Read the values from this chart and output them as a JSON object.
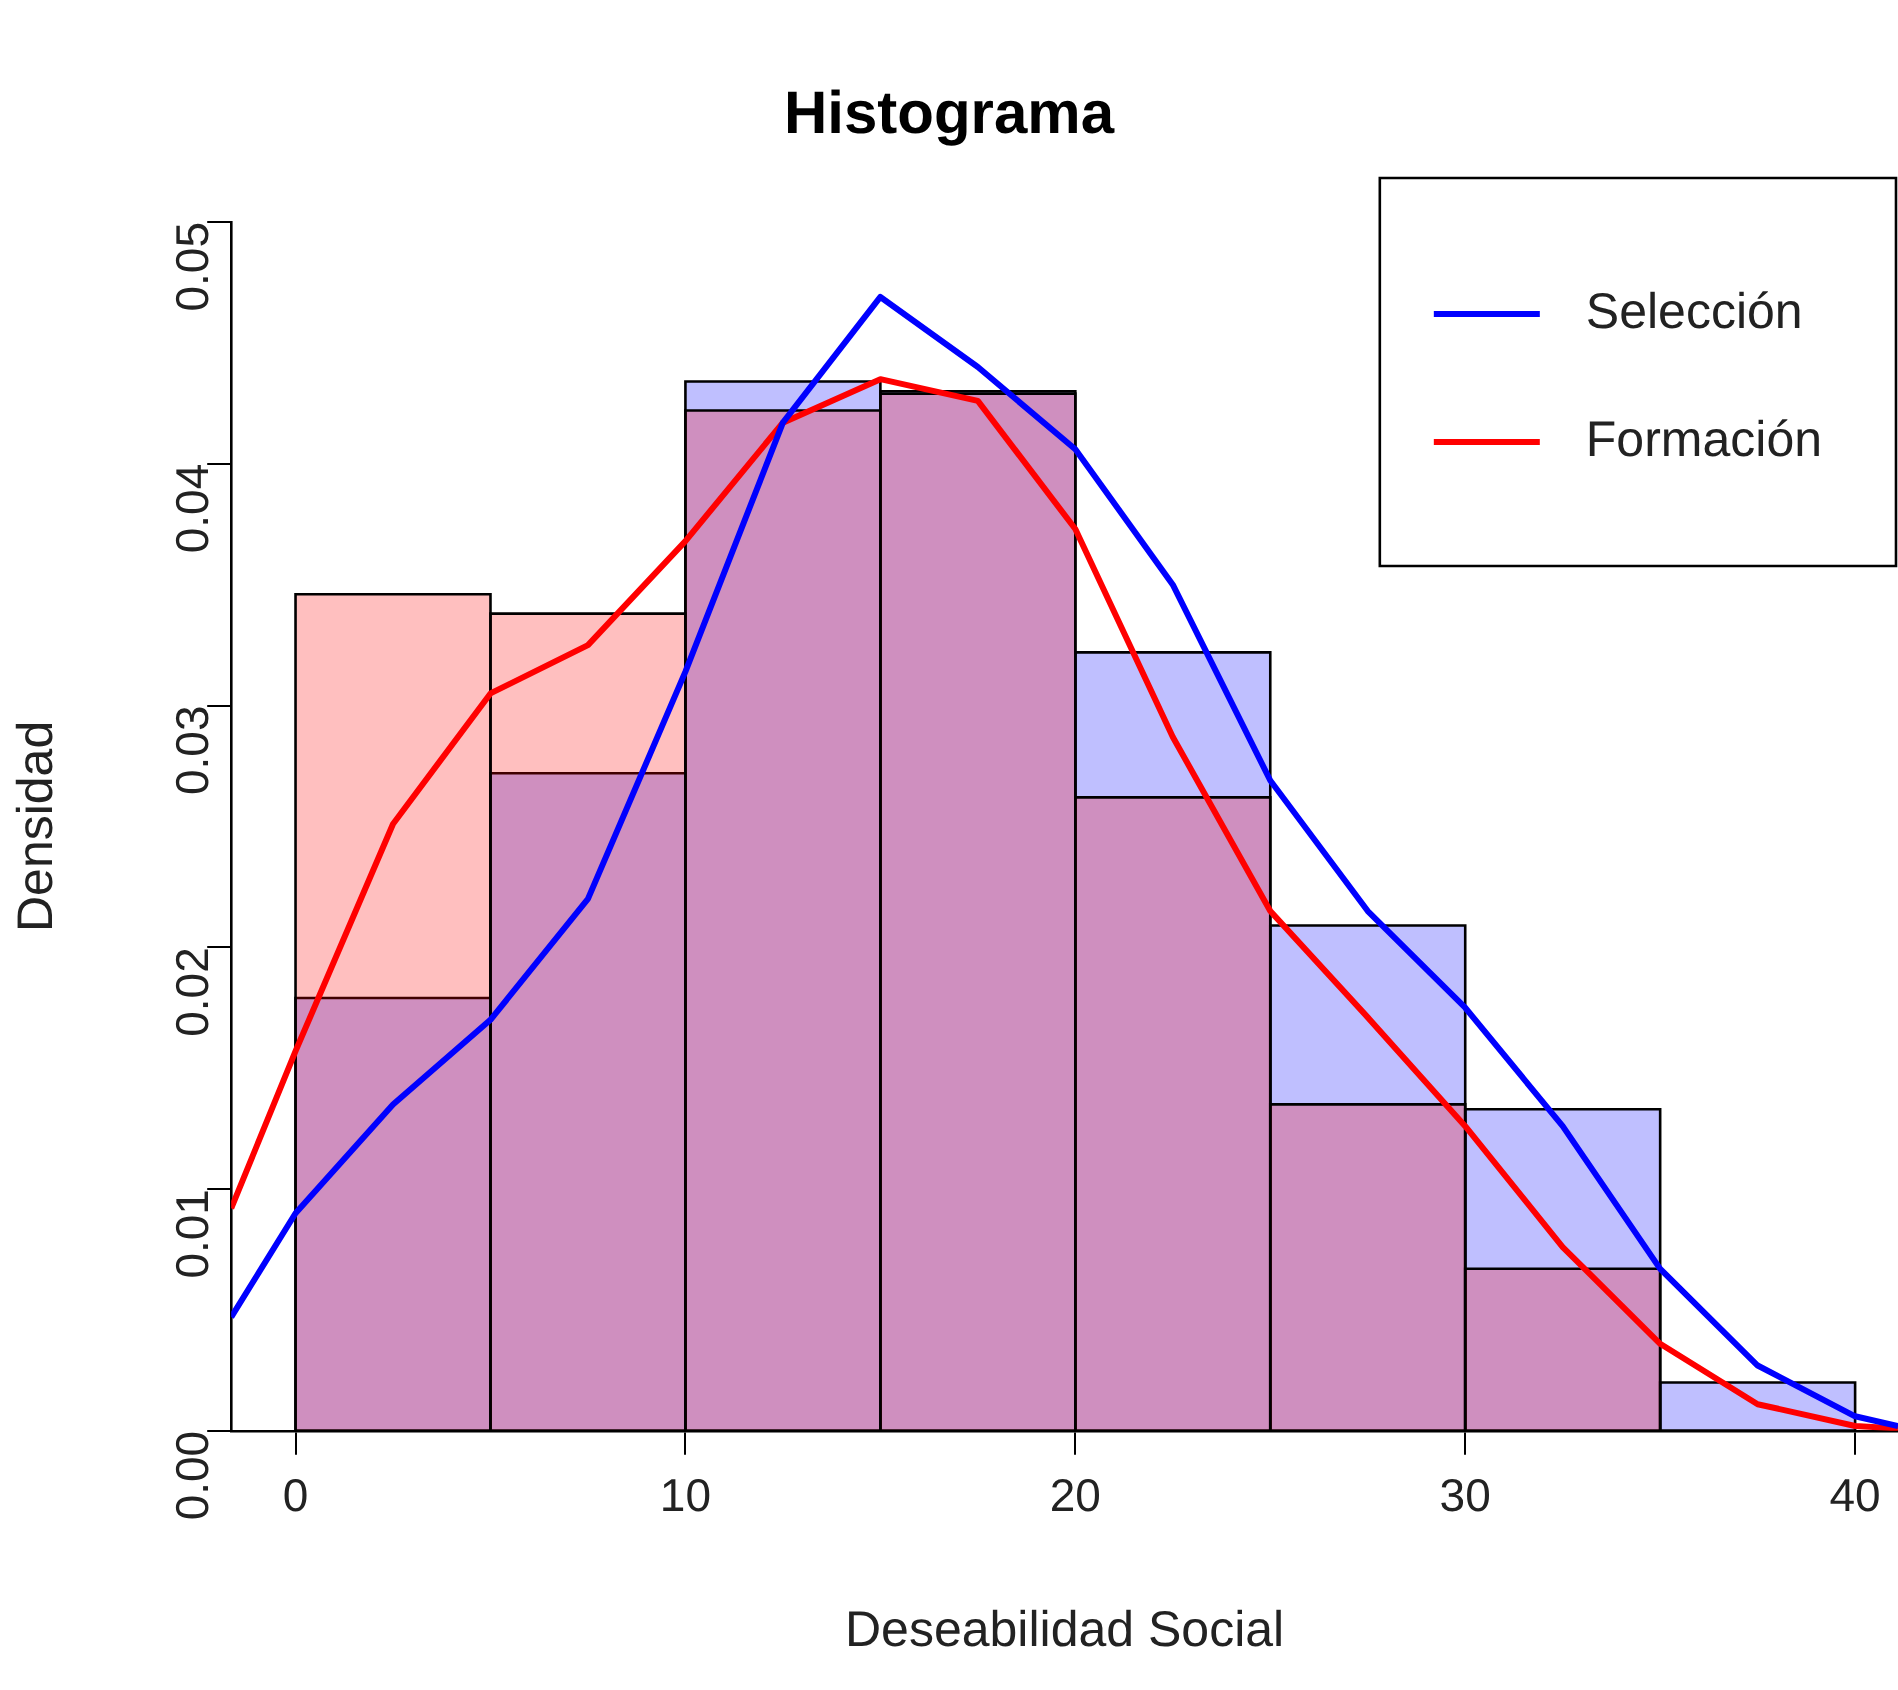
{
  "chart_data": {
    "type": "histogram",
    "title": "Histograma",
    "xlabel": "Deseabilidad Social",
    "ylabel": "Densidad",
    "bins": [
      0,
      5,
      10,
      15,
      20,
      25,
      30,
      35,
      40
    ],
    "xlim": [
      -1.65,
      41.1
    ],
    "xticks": [
      0,
      10,
      20,
      30,
      40
    ],
    "ylim": [
      0,
      0.05
    ],
    "yticks": [
      {
        "value": 0,
        "label": "0.00"
      },
      0.01,
      0.02,
      0.03,
      0.04,
      0.05
    ],
    "grid": false,
    "legend": "top right",
    "series": [
      {
        "type": "histogram",
        "color": "#0000ff",
        "values": [
          0.0179,
          0.0272,
          0.0434,
          0.043,
          0.0322,
          0.0209,
          0.0133,
          0.002
        ]
      },
      {
        "type": "histogram",
        "color": "#ff0000",
        "values": [
          0.0346,
          0.0338,
          0.0422,
          0.0429,
          0.0262,
          0.0135,
          0.0067,
          0
        ]
      },
      {
        "type": "line",
        "name": "Selección",
        "color": "#0000ff",
        "x": [
          -1.65,
          0,
          2.5,
          5,
          7.5,
          10,
          12.5,
          15,
          17.5,
          20,
          22.5,
          25,
          27.5,
          30,
          32.5,
          35,
          37.5,
          40,
          41.1
        ],
        "values": [
          0.0047,
          0.009,
          0.0135,
          0.017,
          0.022,
          0.0314,
          0.0417,
          0.0469,
          0.044,
          0.0406,
          0.035,
          0.0269,
          0.0215,
          0.0175,
          0.0126,
          0.0067,
          0.0027,
          0.0006,
          0.0002
        ]
      },
      {
        "type": "line",
        "name": "Formación",
        "color": "#ff0000",
        "x": [
          -1.65,
          0,
          2.5,
          5,
          7.5,
          10,
          12.5,
          15,
          17.5,
          20,
          22.5,
          25,
          27.5,
          30,
          32.5,
          35,
          37.5,
          40,
          41.1
        ],
        "values": [
          0.0092,
          0.0157,
          0.0251,
          0.0305,
          0.0325,
          0.0368,
          0.0417,
          0.0435,
          0.0426,
          0.0373,
          0.0287,
          0.0215,
          0.0171,
          0.0126,
          0.0076,
          0.0036,
          0.0011,
          0.0002,
          0.0001
        ]
      }
    ]
  }
}
